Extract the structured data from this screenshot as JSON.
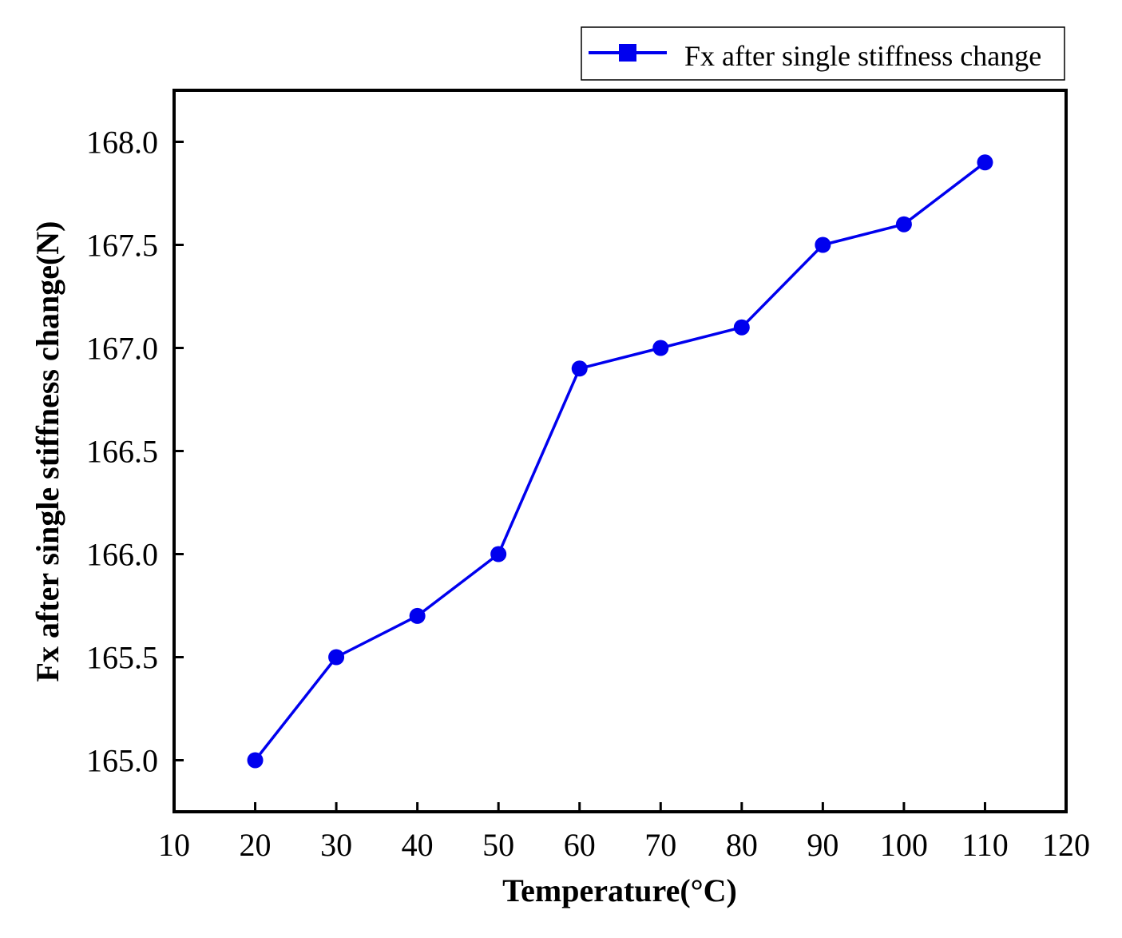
{
  "chart_data": {
    "type": "line",
    "title": "",
    "xlabel": "Temperature(°C)",
    "ylabel": "Fx after single stiffness change(N)",
    "x": [
      20,
      30,
      40,
      50,
      60,
      70,
      80,
      90,
      100,
      110
    ],
    "series": [
      {
        "name": "Fx after single stiffness change",
        "values": [
          165.0,
          165.5,
          165.7,
          166.0,
          166.9,
          167.0,
          167.1,
          167.5,
          167.6,
          167.9
        ],
        "color": "#0000ee",
        "legend_marker": "square",
        "point_marker": "circle"
      }
    ],
    "xlim": [
      10,
      120
    ],
    "ylim": [
      164.75,
      168.25
    ],
    "xticks": [
      10,
      20,
      30,
      40,
      50,
      60,
      70,
      80,
      90,
      100,
      110,
      120
    ],
    "xtick_labels": [
      "10",
      "20",
      "30",
      "40",
      "50",
      "60",
      "70",
      "80",
      "90",
      "100",
      "110",
      "120"
    ],
    "yticks": [
      165.0,
      165.5,
      166.0,
      166.5,
      167.0,
      167.5,
      168.0
    ],
    "ytick_labels": [
      "165.0",
      "165.5",
      "166.0",
      "166.5",
      "167.0",
      "167.5",
      "168.0"
    ],
    "grid": false,
    "legend_position": "top-right, above plot"
  }
}
